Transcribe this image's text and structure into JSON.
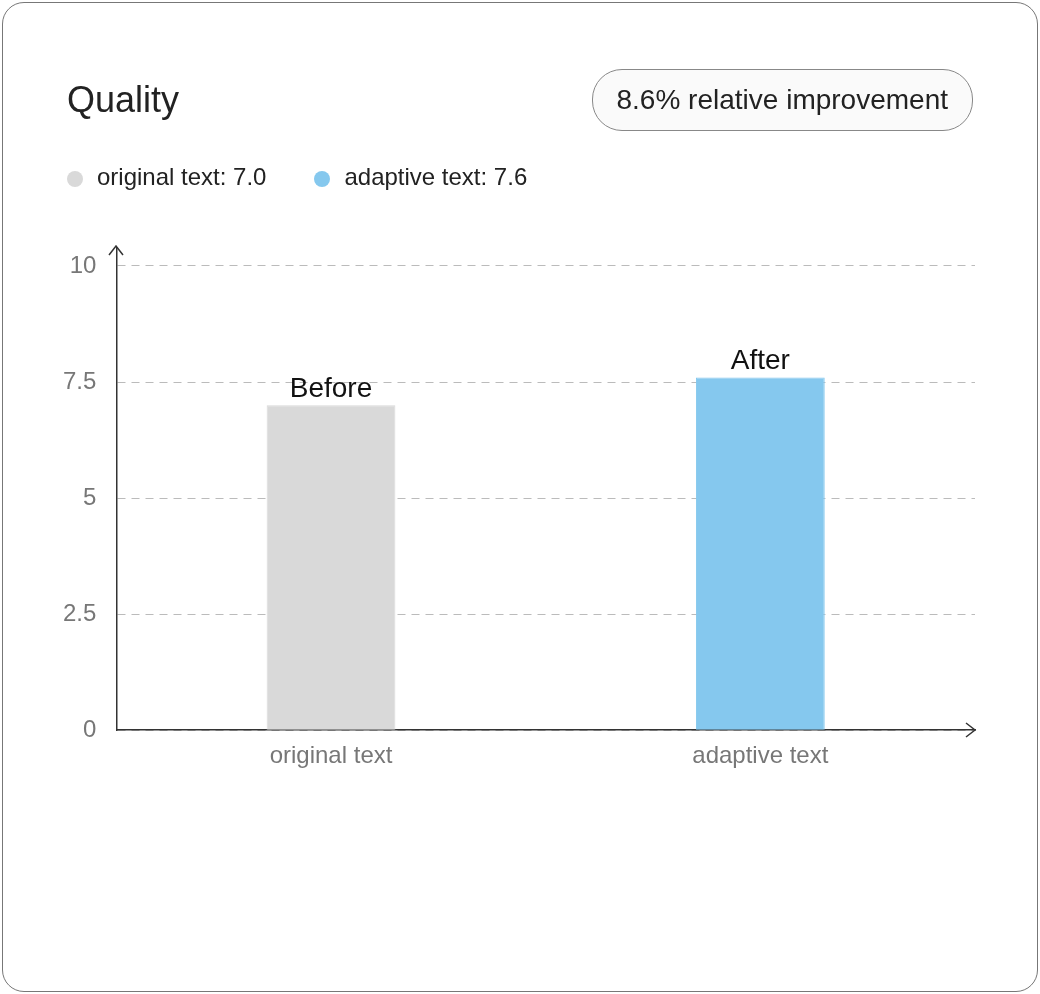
{
  "chart_data": {
    "type": "bar",
    "title": "Quality",
    "categories": [
      "original text",
      "adaptive text"
    ],
    "series": [
      {
        "name": "original text: 7.0",
        "color": "#d9d9d9",
        "values": [
          7.0,
          null
        ]
      },
      {
        "name": "adaptive text: 7.6",
        "color": "#85c8ee",
        "values": [
          null,
          7.6
        ]
      }
    ],
    "ylim": [
      0,
      10.4
    ],
    "yticks": [
      0,
      2.5,
      5,
      7.5,
      10
    ],
    "grid": "y",
    "legend": "top left",
    "annotations": [
      "8.6% relative improvement",
      {
        "text": "Before",
        "x": "original text",
        "y": 7.0
      },
      {
        "text": "After",
        "x": "adaptive text",
        "y": 7.6
      }
    ]
  }
}
